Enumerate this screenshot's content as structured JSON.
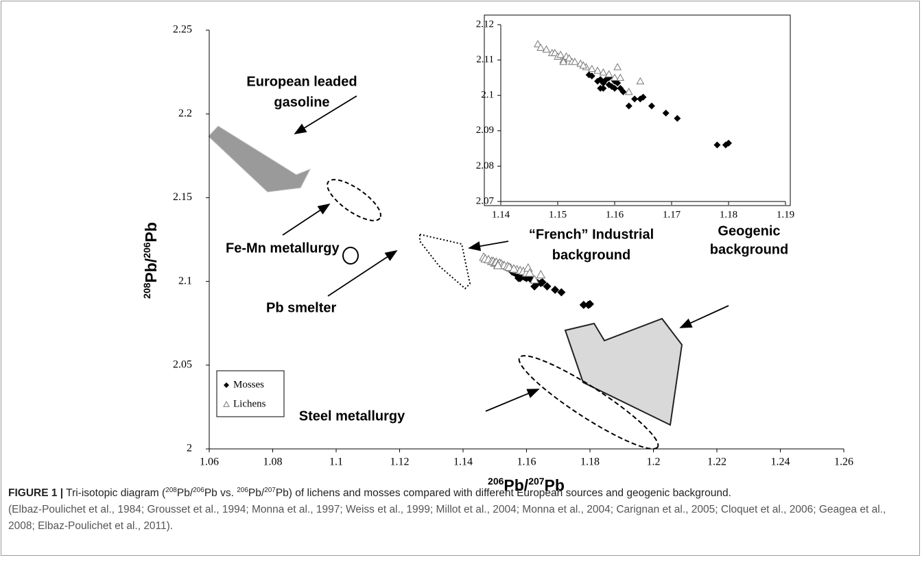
{
  "chart_data": {
    "type": "scatter",
    "xlabel": [
      "206",
      "Pb/",
      "207",
      "Pb"
    ],
    "ylabel": [
      "208",
      "Pb/",
      "206",
      "Pb"
    ],
    "xlim": [
      1.06,
      1.26
    ],
    "ylim": [
      2,
      2.25
    ],
    "xticks": [
      1.06,
      1.08,
      1.1,
      1.12,
      1.14,
      1.16,
      1.18,
      1.2,
      1.22,
      1.24,
      1.26
    ],
    "yticks": [
      2,
      2.05,
      2.1,
      2.15,
      2.2,
      2.25
    ],
    "grid": false,
    "legend": "lower-left",
    "series": [
      {
        "name": "Mosses",
        "color": "#000000",
        "marker": "diamond",
        "x": [
          1.1555,
          1.156,
          1.157,
          1.1575,
          1.158,
          1.1585,
          1.159,
          1.159,
          1.1595,
          1.16,
          1.16,
          1.1605,
          1.161,
          1.1615,
          1.1625,
          1.1635,
          1.1645,
          1.165,
          1.1665,
          1.169,
          1.171,
          1.178,
          1.1795,
          1.18,
          1.158,
          1.1575
        ],
        "values": [
          2.1058,
          2.1055,
          2.104,
          2.1045,
          2.1035,
          2.1045,
          2.105,
          2.103,
          2.1025,
          2.104,
          2.102,
          2.1035,
          2.102,
          2.101,
          2.097,
          2.099,
          2.099,
          2.0995,
          2.097,
          2.095,
          2.0935,
          2.086,
          2.086,
          2.0865,
          2.102,
          2.102
        ]
      },
      {
        "name": "Lichens",
        "color": "#777777",
        "marker": "triangle",
        "x": [
          1.1465,
          1.147,
          1.148,
          1.149,
          1.1495,
          1.15,
          1.1505,
          1.151,
          1.1515,
          1.152,
          1.1525,
          1.153,
          1.154,
          1.155,
          1.1545,
          1.157,
          1.158,
          1.159,
          1.16,
          1.1605,
          1.161,
          1.1645,
          1.1625,
          1.151,
          1.156
        ],
        "values": [
          2.1145,
          2.1135,
          2.113,
          2.112,
          2.112,
          2.111,
          2.1115,
          2.11,
          2.111,
          2.1105,
          2.1095,
          2.1095,
          2.109,
          2.108,
          2.1085,
          2.107,
          2.1065,
          2.106,
          2.105,
          2.108,
          2.105,
          2.104,
          2.101,
          2.1095,
          2.1075
        ]
      }
    ],
    "inset": {
      "xlim": [
        1.14,
        1.19
      ],
      "ylim": [
        2.07,
        2.12
      ],
      "xticks": [
        1.14,
        1.15,
        1.16,
        1.17,
        1.18,
        1.19
      ],
      "yticks": [
        2.07,
        2.08,
        2.09,
        2.1,
        2.11,
        2.12
      ]
    },
    "annotations": {
      "gasoline": [
        "European leaded",
        "gasoline"
      ],
      "femn": "Fe-Mn metallurgy",
      "smelter": "Pb smelter",
      "french": [
        "“French” Industrial",
        "background"
      ],
      "geogenic": [
        "Geogenic",
        "background"
      ],
      "steel": "Steel metallurgy"
    },
    "caption": {
      "label": "FIGURE 1 |",
      "parts": [
        "Tri-isotopic diagram (",
        "208",
        "Pb/",
        "206",
        "Pb vs. ",
        "206",
        "Pb/",
        "207",
        "Pb) of lichens and mosses compared with different European sources and geogenic background."
      ],
      "references": "(Elbaz-Poulichet et al., 1984; Grousset et al., 1994; Monna et al., 1997; Weiss et al., 1999; Millot et al., 2004; Monna et al., 2004; Carignan et al., 2005; Cloquet et al., 2006; Geagea et al., 2008; Elbaz-Poulichet et al., 2011)."
    }
  }
}
